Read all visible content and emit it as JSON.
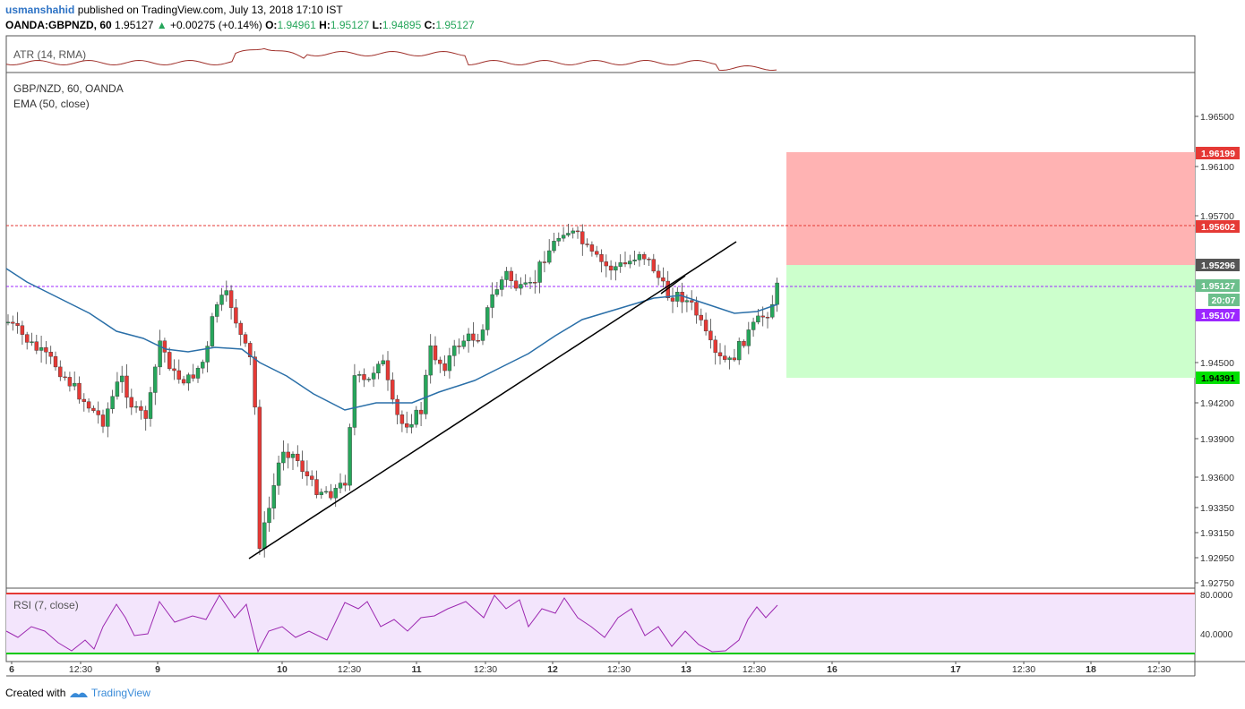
{
  "header": {
    "author": "usmanshahid",
    "published": "published on TradingView.com, July 13, 2018 17:10 IST",
    "symbol": "OANDA:GBPNZD, 60",
    "last": "1.95127",
    "change": "+0.00275 (+0.14%)",
    "open_label": "O:",
    "open": "1.94961",
    "high_label": "H:",
    "high": "1.95127",
    "low_label": "L:",
    "low": "1.94895",
    "close_label": "C:",
    "close": "1.95127"
  },
  "atr_pane": {
    "label": "ATR (14, RMA)",
    "color": "#a0312b"
  },
  "main_pane": {
    "title": "GBP/NZD, 60, OANDA",
    "indicator": "EMA (50, close)",
    "ema_color": "#2a6fa8"
  },
  "rsi_pane": {
    "label": "RSI (7, close)",
    "upper_level": "80.0000",
    "lower_level": "40.0000",
    "color": "#9c27b0"
  },
  "chart_data": {
    "type": "candlestick",
    "price_axis_ticks": [
      "1.96500",
      "1.96100",
      "1.95700",
      "1.94500",
      "1.94200",
      "1.93900",
      "1.93600",
      "1.93350",
      "1.93150",
      "1.92950",
      "1.92750"
    ],
    "time_axis_ticks": [
      "6",
      "12:30",
      "9",
      "10",
      "12:30",
      "11",
      "12:30",
      "12",
      "12:30",
      "13",
      "12:30",
      "16",
      "17",
      "12:30",
      "18",
      "12:30"
    ],
    "price_labels": {
      "stop": "1.96199",
      "red_line": "1.95602",
      "entry": "1.95296",
      "last": "1.95127",
      "countdown": "20:07",
      "purple_line": "1.95107",
      "target": "1.94391"
    },
    "colors": {
      "up": "#26a65b",
      "down": "#e53935",
      "stop_zone": "#ffb3b3",
      "target_zone": "#ccffcc",
      "red_line": "#e53935",
      "purple_line": "#9c27ff"
    },
    "ylim": [
      1.9265,
      1.967
    ]
  },
  "footer": {
    "created": "Created with",
    "brand": "TradingView"
  }
}
